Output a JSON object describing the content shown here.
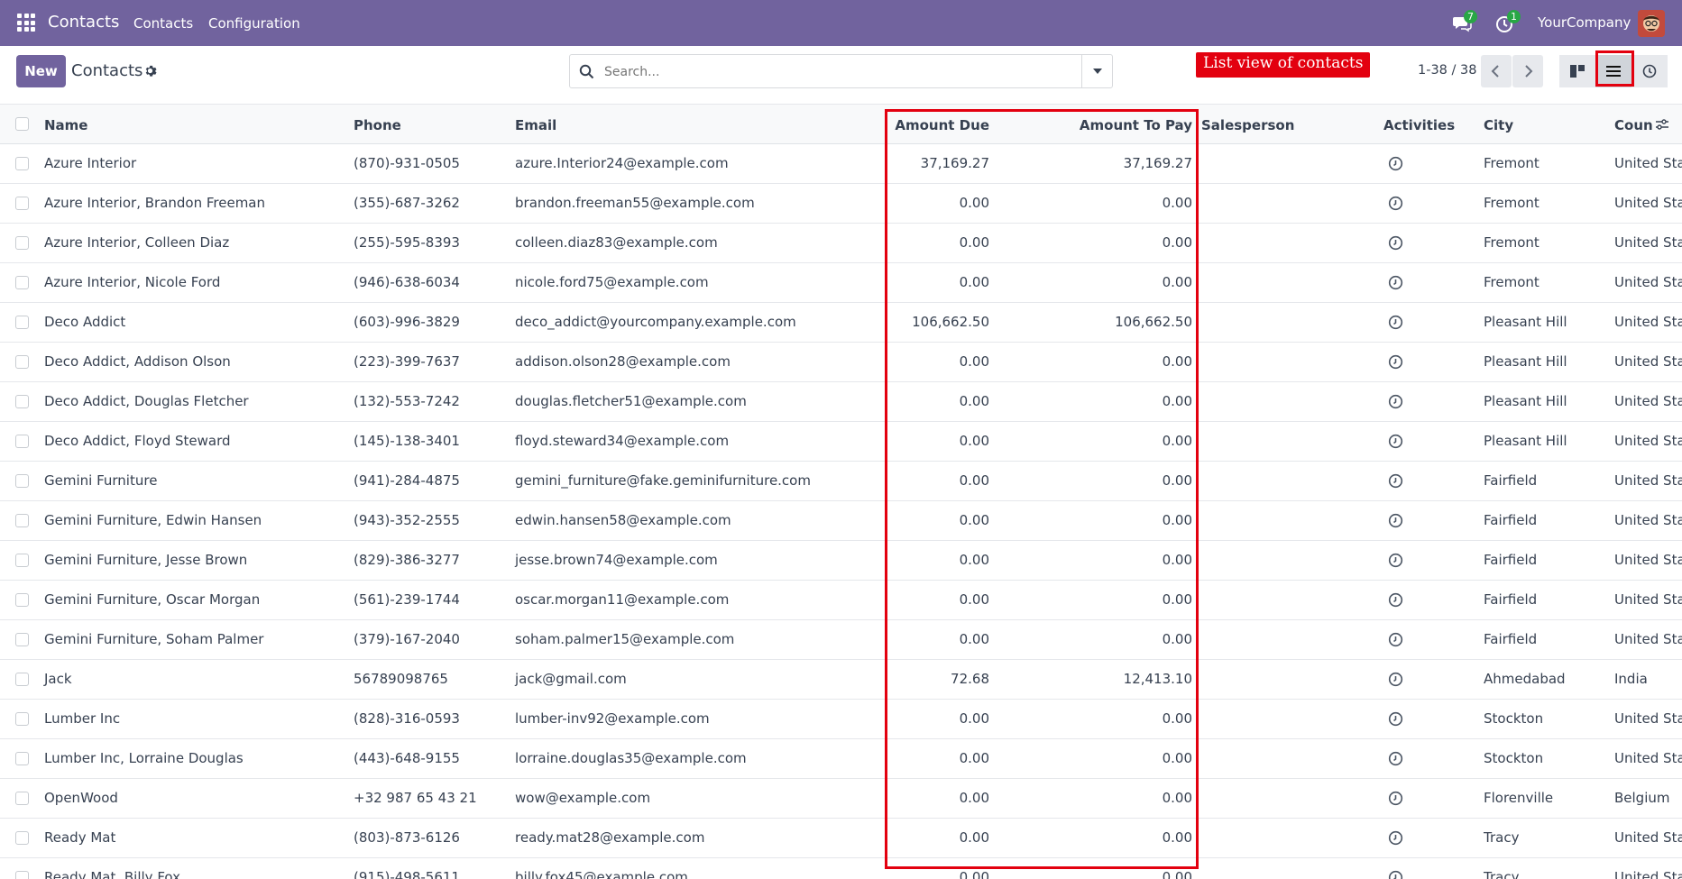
{
  "navbar": {
    "app_name": "Contacts",
    "menu": [
      "Contacts",
      "Configuration"
    ],
    "messages_count": "7",
    "activities_count": "1",
    "company": "YourCompany"
  },
  "control": {
    "new_label": "New",
    "breadcrumb": "Contacts",
    "search_placeholder": "Search...",
    "annotation": "List view of contacts",
    "pager": "1-38 / 38"
  },
  "table": {
    "headers": {
      "name": "Name",
      "phone": "Phone",
      "email": "Email",
      "amount_due": "Amount Due",
      "amount_to_pay": "Amount To Pay",
      "salesperson": "Salesperson",
      "activities": "Activities",
      "city": "City",
      "country": "Coun"
    },
    "rows": [
      {
        "name": "Azure Interior",
        "phone": "(870)-931-0505",
        "email": "azure.Interior24@example.com",
        "due": "37,169.27",
        "topay": "37,169.27",
        "city": "Fremont",
        "country": "United Sta"
      },
      {
        "name": "Azure Interior, Brandon Freeman",
        "phone": "(355)-687-3262",
        "email": "brandon.freeman55@example.com",
        "due": "0.00",
        "topay": "0.00",
        "city": "Fremont",
        "country": "United Sta"
      },
      {
        "name": "Azure Interior, Colleen Diaz",
        "phone": "(255)-595-8393",
        "email": "colleen.diaz83@example.com",
        "due": "0.00",
        "topay": "0.00",
        "city": "Fremont",
        "country": "United Sta"
      },
      {
        "name": "Azure Interior, Nicole Ford",
        "phone": "(946)-638-6034",
        "email": "nicole.ford75@example.com",
        "due": "0.00",
        "topay": "0.00",
        "city": "Fremont",
        "country": "United Sta"
      },
      {
        "name": "Deco Addict",
        "phone": "(603)-996-3829",
        "email": "deco_addict@yourcompany.example.com",
        "due": "106,662.50",
        "topay": "106,662.50",
        "city": "Pleasant Hill",
        "country": "United Sta"
      },
      {
        "name": "Deco Addict, Addison Olson",
        "phone": "(223)-399-7637",
        "email": "addison.olson28@example.com",
        "due": "0.00",
        "topay": "0.00",
        "city": "Pleasant Hill",
        "country": "United Sta"
      },
      {
        "name": "Deco Addict, Douglas Fletcher",
        "phone": "(132)-553-7242",
        "email": "douglas.fletcher51@example.com",
        "due": "0.00",
        "topay": "0.00",
        "city": "Pleasant Hill",
        "country": "United Sta"
      },
      {
        "name": "Deco Addict, Floyd Steward",
        "phone": "(145)-138-3401",
        "email": "floyd.steward34@example.com",
        "due": "0.00",
        "topay": "0.00",
        "city": "Pleasant Hill",
        "country": "United Sta"
      },
      {
        "name": "Gemini Furniture",
        "phone": "(941)-284-4875",
        "email": "gemini_furniture@fake.geminifurniture.com",
        "due": "0.00",
        "topay": "0.00",
        "city": "Fairfield",
        "country": "United Sta"
      },
      {
        "name": "Gemini Furniture, Edwin Hansen",
        "phone": "(943)-352-2555",
        "email": "edwin.hansen58@example.com",
        "due": "0.00",
        "topay": "0.00",
        "city": "Fairfield",
        "country": "United Sta"
      },
      {
        "name": "Gemini Furniture, Jesse Brown",
        "phone": "(829)-386-3277",
        "email": "jesse.brown74@example.com",
        "due": "0.00",
        "topay": "0.00",
        "city": "Fairfield",
        "country": "United Sta"
      },
      {
        "name": "Gemini Furniture, Oscar Morgan",
        "phone": "(561)-239-1744",
        "email": "oscar.morgan11@example.com",
        "due": "0.00",
        "topay": "0.00",
        "city": "Fairfield",
        "country": "United Sta"
      },
      {
        "name": "Gemini Furniture, Soham Palmer",
        "phone": "(379)-167-2040",
        "email": "soham.palmer15@example.com",
        "due": "0.00",
        "topay": "0.00",
        "city": "Fairfield",
        "country": "United Sta"
      },
      {
        "name": "Jack",
        "phone": "56789098765",
        "email": "jack@gmail.com",
        "due": "72.68",
        "topay": "12,413.10",
        "city": "Ahmedabad",
        "country": "India"
      },
      {
        "name": "Lumber Inc",
        "phone": "(828)-316-0593",
        "email": "lumber-inv92@example.com",
        "due": "0.00",
        "topay": "0.00",
        "city": "Stockton",
        "country": "United Sta"
      },
      {
        "name": "Lumber Inc, Lorraine Douglas",
        "phone": "(443)-648-9155",
        "email": "lorraine.douglas35@example.com",
        "due": "0.00",
        "topay": "0.00",
        "city": "Stockton",
        "country": "United Sta"
      },
      {
        "name": "OpenWood",
        "phone": "+32 987 65 43 21",
        "email": "wow@example.com",
        "due": "0.00",
        "topay": "0.00",
        "city": "Florenville",
        "country": "Belgium"
      },
      {
        "name": "Ready Mat",
        "phone": "(803)-873-6126",
        "email": "ready.mat28@example.com",
        "due": "0.00",
        "topay": "0.00",
        "city": "Tracy",
        "country": "United Sta"
      },
      {
        "name": "Ready Mat, Billy Fox",
        "phone": "(915)-498-5611",
        "email": "billy.fox45@example.com",
        "due": "0.00",
        "topay": "0.00",
        "city": "Tracy",
        "country": "United Sta"
      }
    ]
  },
  "colors": {
    "brand": "#71639e",
    "highlight": "#e3000f",
    "badge": "#28a745"
  }
}
